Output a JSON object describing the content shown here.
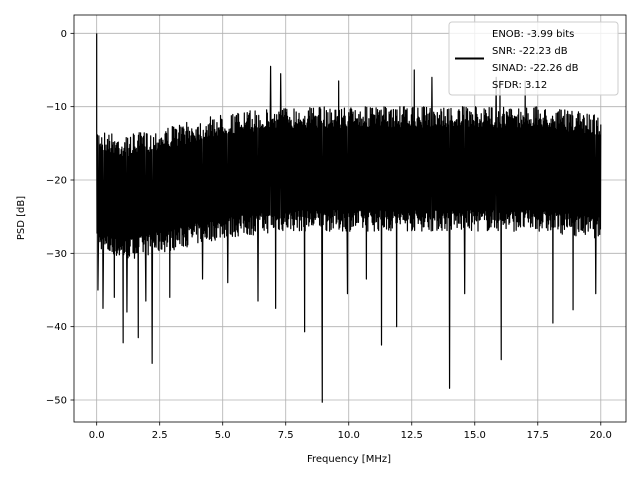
{
  "chart_data": {
    "type": "line",
    "title": "",
    "xlabel": "Frequency [MHz]",
    "ylabel": "PSD [dB]",
    "xlim": [
      -0.9,
      21.0
    ],
    "ylim": [
      -53,
      2.5
    ],
    "xticks": [
      0.0,
      2.5,
      5.0,
      7.5,
      10.0,
      12.5,
      15.0,
      17.5,
      20.0
    ],
    "xtick_labels": [
      "0.0",
      "2.5",
      "5.0",
      "7.5",
      "10.0",
      "12.5",
      "15.0",
      "17.5",
      "20.0"
    ],
    "yticks": [
      0,
      -10,
      -20,
      -30,
      -40,
      -50
    ],
    "ytick_labels": [
      "0",
      "−10",
      "−20",
      "−30",
      "−40",
      "−50"
    ],
    "grid": true,
    "legend_position": "top-right",
    "legend_lines": [
      "ENOB: -3.99 bits",
      "SNR: -22.23 dB",
      "SINAD: -22.26 dB",
      "SFDR: 3.12"
    ],
    "series": [
      {
        "color": "#000000",
        "x_start": 0.0,
        "x_end": 20.0,
        "peak": {
          "x": 0.0,
          "y": 0.0
        },
        "band_envelope": [
          {
            "x": 0.1,
            "upper": -13,
            "lower": -30
          },
          {
            "x": 1.0,
            "upper": -14,
            "lower": -31
          },
          {
            "x": 2.5,
            "upper": -13,
            "lower": -30
          },
          {
            "x": 5.0,
            "upper": -11,
            "lower": -28
          },
          {
            "x": 7.5,
            "upper": -10,
            "lower": -27
          },
          {
            "x": 10.0,
            "upper": -10,
            "lower": -27
          },
          {
            "x": 12.5,
            "upper": -10,
            "lower": -27
          },
          {
            "x": 15.0,
            "upper": -10,
            "lower": -27
          },
          {
            "x": 17.5,
            "upper": -10,
            "lower": -27
          },
          {
            "x": 20.0,
            "upper": -11,
            "lower": -28
          }
        ],
        "notable_dips": [
          {
            "x": 0.05,
            "y": -35
          },
          {
            "x": 0.25,
            "y": -37.5
          },
          {
            "x": 0.7,
            "y": -36
          },
          {
            "x": 1.05,
            "y": -42.2
          },
          {
            "x": 1.2,
            "y": -38
          },
          {
            "x": 1.65,
            "y": -41.5
          },
          {
            "x": 1.95,
            "y": -36.5
          },
          {
            "x": 2.2,
            "y": -45
          },
          {
            "x": 2.9,
            "y": -36
          },
          {
            "x": 4.2,
            "y": -33.5
          },
          {
            "x": 5.2,
            "y": -34
          },
          {
            "x": 6.4,
            "y": -36.5
          },
          {
            "x": 7.1,
            "y": -37.5
          },
          {
            "x": 8.25,
            "y": -40.7
          },
          {
            "x": 8.95,
            "y": -50.3
          },
          {
            "x": 9.95,
            "y": -35.5
          },
          {
            "x": 10.7,
            "y": -33.5
          },
          {
            "x": 11.3,
            "y": -42.5
          },
          {
            "x": 11.9,
            "y": -40
          },
          {
            "x": 14.0,
            "y": -48.4
          },
          {
            "x": 14.6,
            "y": -35.5
          },
          {
            "x": 16.05,
            "y": -44.5
          },
          {
            "x": 18.1,
            "y": -39.5
          },
          {
            "x": 18.9,
            "y": -37.7
          },
          {
            "x": 19.8,
            "y": -35.5
          }
        ],
        "notable_peaks": [
          {
            "x": 6.9,
            "y": -4.5
          },
          {
            "x": 7.3,
            "y": -5.5
          },
          {
            "x": 9.6,
            "y": -6.5
          },
          {
            "x": 12.6,
            "y": -5
          },
          {
            "x": 13.3,
            "y": -6
          },
          {
            "x": 15.85,
            "y": -6
          },
          {
            "x": 16.0,
            "y": -6.5
          },
          {
            "x": 17.0,
            "y": -6.5
          }
        ]
      }
    ]
  }
}
